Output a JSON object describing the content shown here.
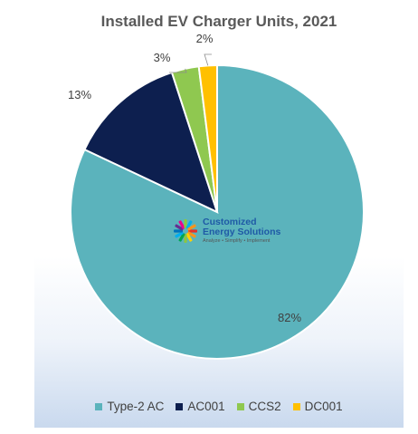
{
  "chart_data": {
    "type": "pie",
    "title": "Installed EV  Charger Units, 2021",
    "categories": [
      "Type-2 AC",
      "AC001",
      "CCS2",
      "DC001"
    ],
    "values": [
      82,
      13,
      3,
      2
    ],
    "labels": [
      "82%",
      "13%",
      "3%",
      "2%"
    ],
    "colors": [
      "#5bb3bc",
      "#0d1f4f",
      "#8fc850",
      "#ffc000"
    ],
    "legend_position": "bottom",
    "start_angle_deg": 0,
    "direction": "clockwise"
  },
  "logo": {
    "name_line1": "Customized",
    "name_line2": "Energy Solutions",
    "tagline": "Analyze • Simplify • Implement"
  }
}
